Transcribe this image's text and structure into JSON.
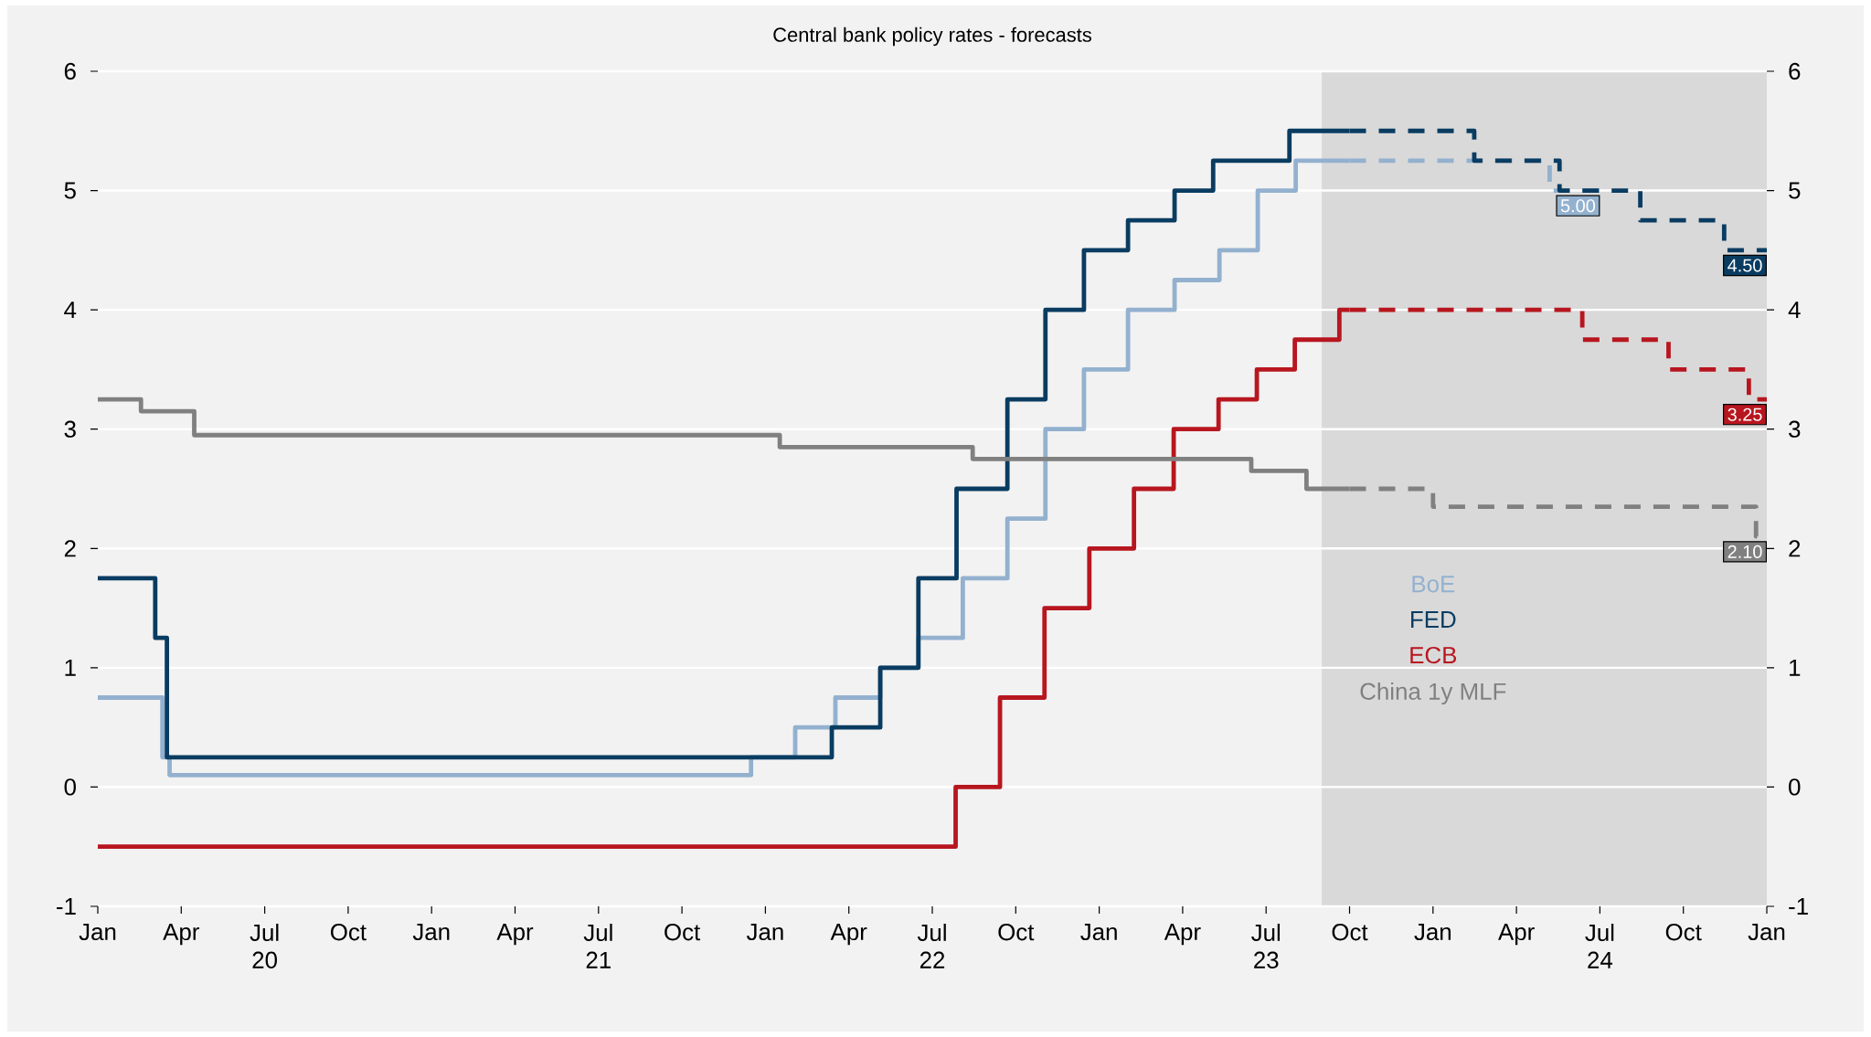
{
  "chart_data": {
    "type": "step",
    "title": "Central bank policy rates - forecasts",
    "xlim": [
      "2020-01-01",
      "2025-01-01"
    ],
    "xticks": [
      {
        "value": "2020-01-01",
        "label": "Jan"
      },
      {
        "value": "2020-04-01",
        "label": "Apr"
      },
      {
        "value": "2020-07-01",
        "label": "Jul 20"
      },
      {
        "value": "2020-10-01",
        "label": "Oct"
      },
      {
        "value": "2021-01-01",
        "label": "Jan"
      },
      {
        "value": "2021-04-01",
        "label": "Apr"
      },
      {
        "value": "2021-07-01",
        "label": "Jul 21"
      },
      {
        "value": "2021-10-01",
        "label": "Oct"
      },
      {
        "value": "2022-01-01",
        "label": "Jan"
      },
      {
        "value": "2022-04-01",
        "label": "Apr"
      },
      {
        "value": "2022-07-01",
        "label": "Jul 22"
      },
      {
        "value": "2022-10-01",
        "label": "Oct"
      },
      {
        "value": "2023-01-01",
        "label": "Jan"
      },
      {
        "value": "2023-04-01",
        "label": "Apr"
      },
      {
        "value": "2023-07-01",
        "label": "Jul 23"
      },
      {
        "value": "2023-10-01",
        "label": "Oct"
      },
      {
        "value": "2024-01-01",
        "label": "Jan"
      },
      {
        "value": "2024-04-01",
        "label": "Apr"
      },
      {
        "value": "2024-07-01",
        "label": "Jul 24"
      },
      {
        "value": "2024-10-01",
        "label": "Oct"
      },
      {
        "value": "2025-01-01",
        "label": "Jan"
      }
    ],
    "ylim": [
      -1,
      6
    ],
    "yticks": [
      -1,
      0,
      1,
      2,
      3,
      4,
      5,
      6
    ],
    "y2lim": [
      -1,
      6
    ],
    "y2ticks": [
      -1,
      0,
      1,
      2,
      3,
      4,
      5,
      6
    ],
    "grid": "y",
    "legend": "bottom right",
    "marker": "none",
    "bands": [
      {
        "axis": "x",
        "from": "2023-09-01",
        "to": "2025-01-01",
        "color": "#d9d9d9"
      }
    ],
    "series": [
      {
        "name": "BoE",
        "color": "#93b1cf",
        "line_style": "solid",
        "x": [
          "2020-01-01",
          "2020-03-11",
          "2020-03-19",
          "2021-12-16",
          "2022-02-03",
          "2022-03-17",
          "2022-05-05",
          "2022-06-16",
          "2022-08-04",
          "2022-09-22",
          "2022-11-03",
          "2022-12-15",
          "2023-02-02",
          "2023-03-23",
          "2023-05-11",
          "2023-06-22",
          "2023-08-03",
          "2023-10-01"
        ],
        "values": [
          0.75,
          0.25,
          0.1,
          0.25,
          0.5,
          0.75,
          1.0,
          1.25,
          1.75,
          2.25,
          3.0,
          3.5,
          4.0,
          4.25,
          4.5,
          5.0,
          5.25,
          5.25
        ]
      },
      {
        "name": "FED",
        "color": "#0a3c61",
        "line_style": "solid",
        "x": [
          "2020-01-01",
          "2020-03-03",
          "2020-03-16",
          "2022-03-13",
          "2022-05-05",
          "2022-06-16",
          "2022-07-28",
          "2022-09-22",
          "2022-11-03",
          "2022-12-15",
          "2023-02-02",
          "2023-03-23",
          "2023-05-04",
          "2023-07-27",
          "2023-10-01"
        ],
        "values": [
          1.75,
          1.25,
          0.25,
          0.5,
          1.0,
          1.75,
          2.5,
          3.25,
          4.0,
          4.5,
          4.75,
          5.0,
          5.25,
          5.5,
          5.5
        ]
      },
      {
        "name": "ECB",
        "color": "#b8161f",
        "line_style": "solid",
        "x": [
          "2020-01-01",
          "2022-07-27",
          "2022-09-14",
          "2022-11-02",
          "2022-12-21",
          "2023-02-08",
          "2023-03-22",
          "2023-05-10",
          "2023-06-21",
          "2023-08-02",
          "2023-09-20",
          "2023-10-01"
        ],
        "values": [
          -0.5,
          0.0,
          0.75,
          1.5,
          2.0,
          2.5,
          3.0,
          3.25,
          3.5,
          3.75,
          4.0,
          4.0
        ]
      },
      {
        "name": "China 1y MLF",
        "color": "#808080",
        "line_style": "solid",
        "x": [
          "2020-01-01",
          "2020-02-17",
          "2020-04-15",
          "2022-01-17",
          "2022-08-15",
          "2023-06-15",
          "2023-08-15",
          "2023-10-01"
        ],
        "values": [
          3.25,
          3.15,
          2.95,
          2.85,
          2.75,
          2.65,
          2.5,
          2.5
        ]
      },
      {
        "color": "#93b1cf",
        "line_style": "dashed",
        "x": [
          "2023-10-01",
          "2024-05-07",
          "2024-07-01"
        ],
        "values": [
          5.25,
          5.0,
          5.0
        ],
        "value_labels": [
          null,
          null,
          "5.00"
        ]
      },
      {
        "color": "#0a3c61",
        "line_style": "dashed",
        "x": [
          "2023-10-01",
          "2024-02-15",
          "2024-05-18",
          "2024-08-15",
          "2024-11-15",
          "2025-01-01"
        ],
        "values": [
          5.5,
          5.25,
          5.0,
          4.75,
          4.5,
          4.5
        ],
        "value_labels": [
          null,
          null,
          null,
          null,
          null,
          "4.50"
        ]
      },
      {
        "color": "#b8161f",
        "line_style": "dashed",
        "x": [
          "2023-10-01",
          "2024-06-12",
          "2024-09-15",
          "2024-12-12",
          "2025-01-01"
        ],
        "values": [
          4.0,
          3.75,
          3.5,
          3.25,
          3.25
        ],
        "value_labels": [
          null,
          null,
          null,
          null,
          "3.25"
        ]
      },
      {
        "color": "#808080",
        "line_style": "dashed",
        "x": [
          "2023-10-01",
          "2024-01-01",
          "2024-12-20",
          "2025-01-01"
        ],
        "values": [
          2.5,
          2.35,
          2.1,
          2.1
        ],
        "value_labels": [
          null,
          null,
          null,
          "2.10"
        ]
      }
    ]
  }
}
